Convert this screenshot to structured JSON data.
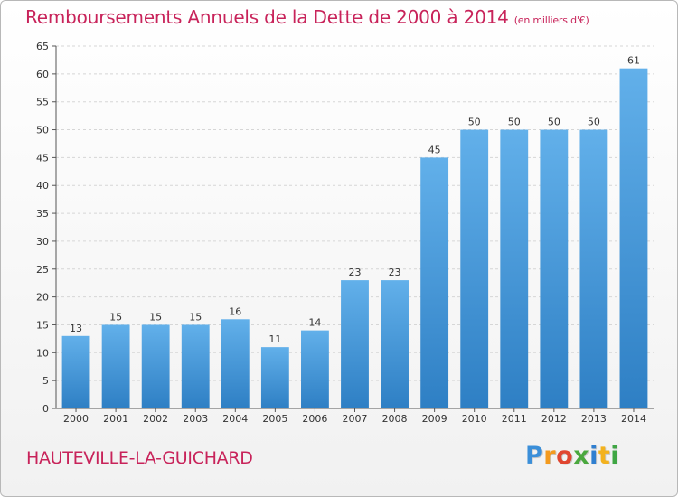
{
  "title": "Remboursements Annuels de la Dette de 2000 à 2014",
  "unit_note": "(en milliers d'€)",
  "commune": "HAUTEVILLE-LA-GUICHARD",
  "logo": {
    "letters": [
      "P",
      "r",
      "o",
      "x",
      "i",
      "t",
      "i"
    ],
    "colors": [
      "#3b8fd9",
      "#f39a1e",
      "#e0452f",
      "#4aa83e",
      "#2f7fd0",
      "#f3b21e",
      "#3fa644"
    ]
  },
  "colors": {
    "title": "#c8235a",
    "bar_top": "#62b0ea",
    "bar_bottom": "#2e7fc4"
  },
  "chart_data": {
    "type": "bar",
    "categories": [
      "2000",
      "2001",
      "2002",
      "2003",
      "2004",
      "2005",
      "2006",
      "2007",
      "2008",
      "2009",
      "2010",
      "2011",
      "2012",
      "2013",
      "2014"
    ],
    "values": [
      13,
      15,
      15,
      15,
      16,
      11,
      14,
      23,
      23,
      45,
      50,
      50,
      50,
      50,
      61
    ],
    "title": "Remboursements Annuels de la Dette de 2000 à 2014",
    "xlabel": "",
    "ylabel": "",
    "ylim": [
      0,
      65
    ],
    "yticks": [
      0,
      5,
      10,
      15,
      20,
      25,
      30,
      35,
      40,
      45,
      50,
      55,
      60,
      65
    ],
    "grid": true,
    "data_labels": true
  }
}
